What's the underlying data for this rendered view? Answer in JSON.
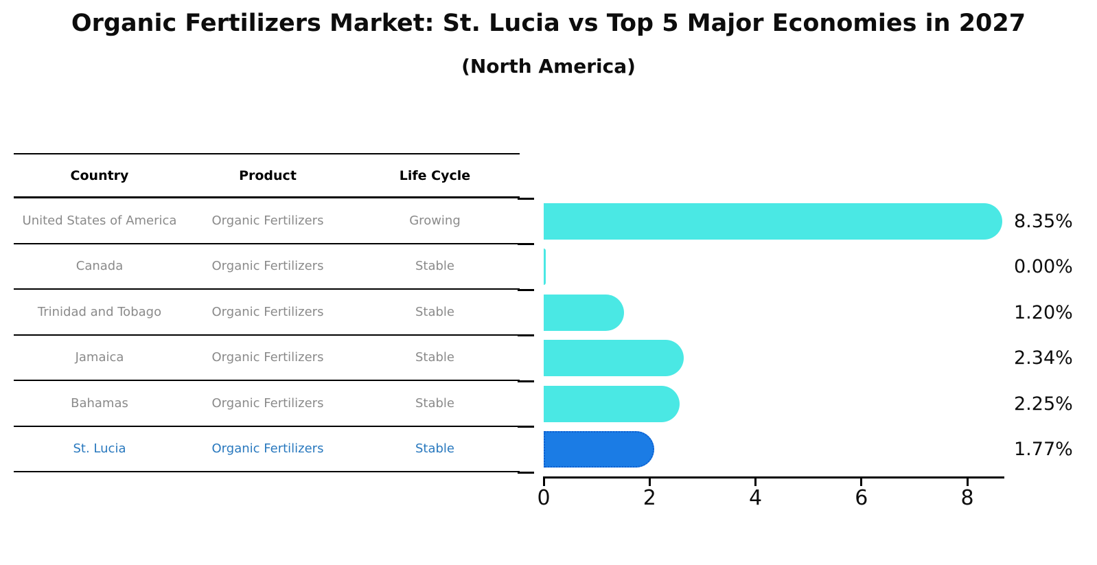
{
  "title": "Organic Fertilizers Market: St. Lucia vs Top 5 Major Economies in 2027",
  "subtitle": "(North America)",
  "table": {
    "headers": [
      "Country",
      "Product",
      "Life Cycle"
    ],
    "rows": [
      {
        "country": "United States of America",
        "product": "Organic Fertilizers",
        "life_cycle": "Growing",
        "highlight": false
      },
      {
        "country": "Canada",
        "product": "Organic Fertilizers",
        "life_cycle": "Stable",
        "highlight": false
      },
      {
        "country": "Trinidad and Tobago",
        "product": "Organic Fertilizers",
        "life_cycle": "Stable",
        "highlight": false
      },
      {
        "country": "Jamaica",
        "product": "Organic Fertilizers",
        "life_cycle": "Stable",
        "highlight": false
      },
      {
        "country": "Bahamas",
        "product": "Organic Fertilizers",
        "life_cycle": "Stable",
        "highlight": false
      },
      {
        "country": "St. Lucia",
        "product": "Organic Fertilizers",
        "life_cycle": "Stable",
        "highlight": true
      }
    ]
  },
  "chart_data": {
    "type": "bar",
    "orientation": "horizontal",
    "title": "Organic Fertilizers Market: St. Lucia vs Top 5 Major Economies in 2027",
    "subtitle": "(North America)",
    "categories": [
      "United States of America",
      "Canada",
      "Trinidad and Tobago",
      "Jamaica",
      "Bahamas",
      "St. Lucia"
    ],
    "values": [
      8.35,
      0.0,
      1.2,
      2.34,
      2.25,
      1.77
    ],
    "value_labels": [
      "8.35%",
      "0.00%",
      "1.20%",
      "2.34%",
      "2.25%",
      "1.77%"
    ],
    "xlabel": "",
    "ylabel": "",
    "xticks": [
      0,
      2,
      4,
      6,
      8
    ],
    "xlim": [
      0,
      8.7
    ],
    "grid": false,
    "legend": false,
    "highlight_index": 5,
    "bar_color": "#4ae8e4",
    "highlight_color": "#1b7ce5"
  },
  "colors": {
    "bar": "#4ae8e4",
    "highlight_bar": "#1b7ce5",
    "highlight_border": "#0d5fd0",
    "highlight_text": "#2878be",
    "row_text": "#8a8a8a",
    "axis": "#000000"
  }
}
